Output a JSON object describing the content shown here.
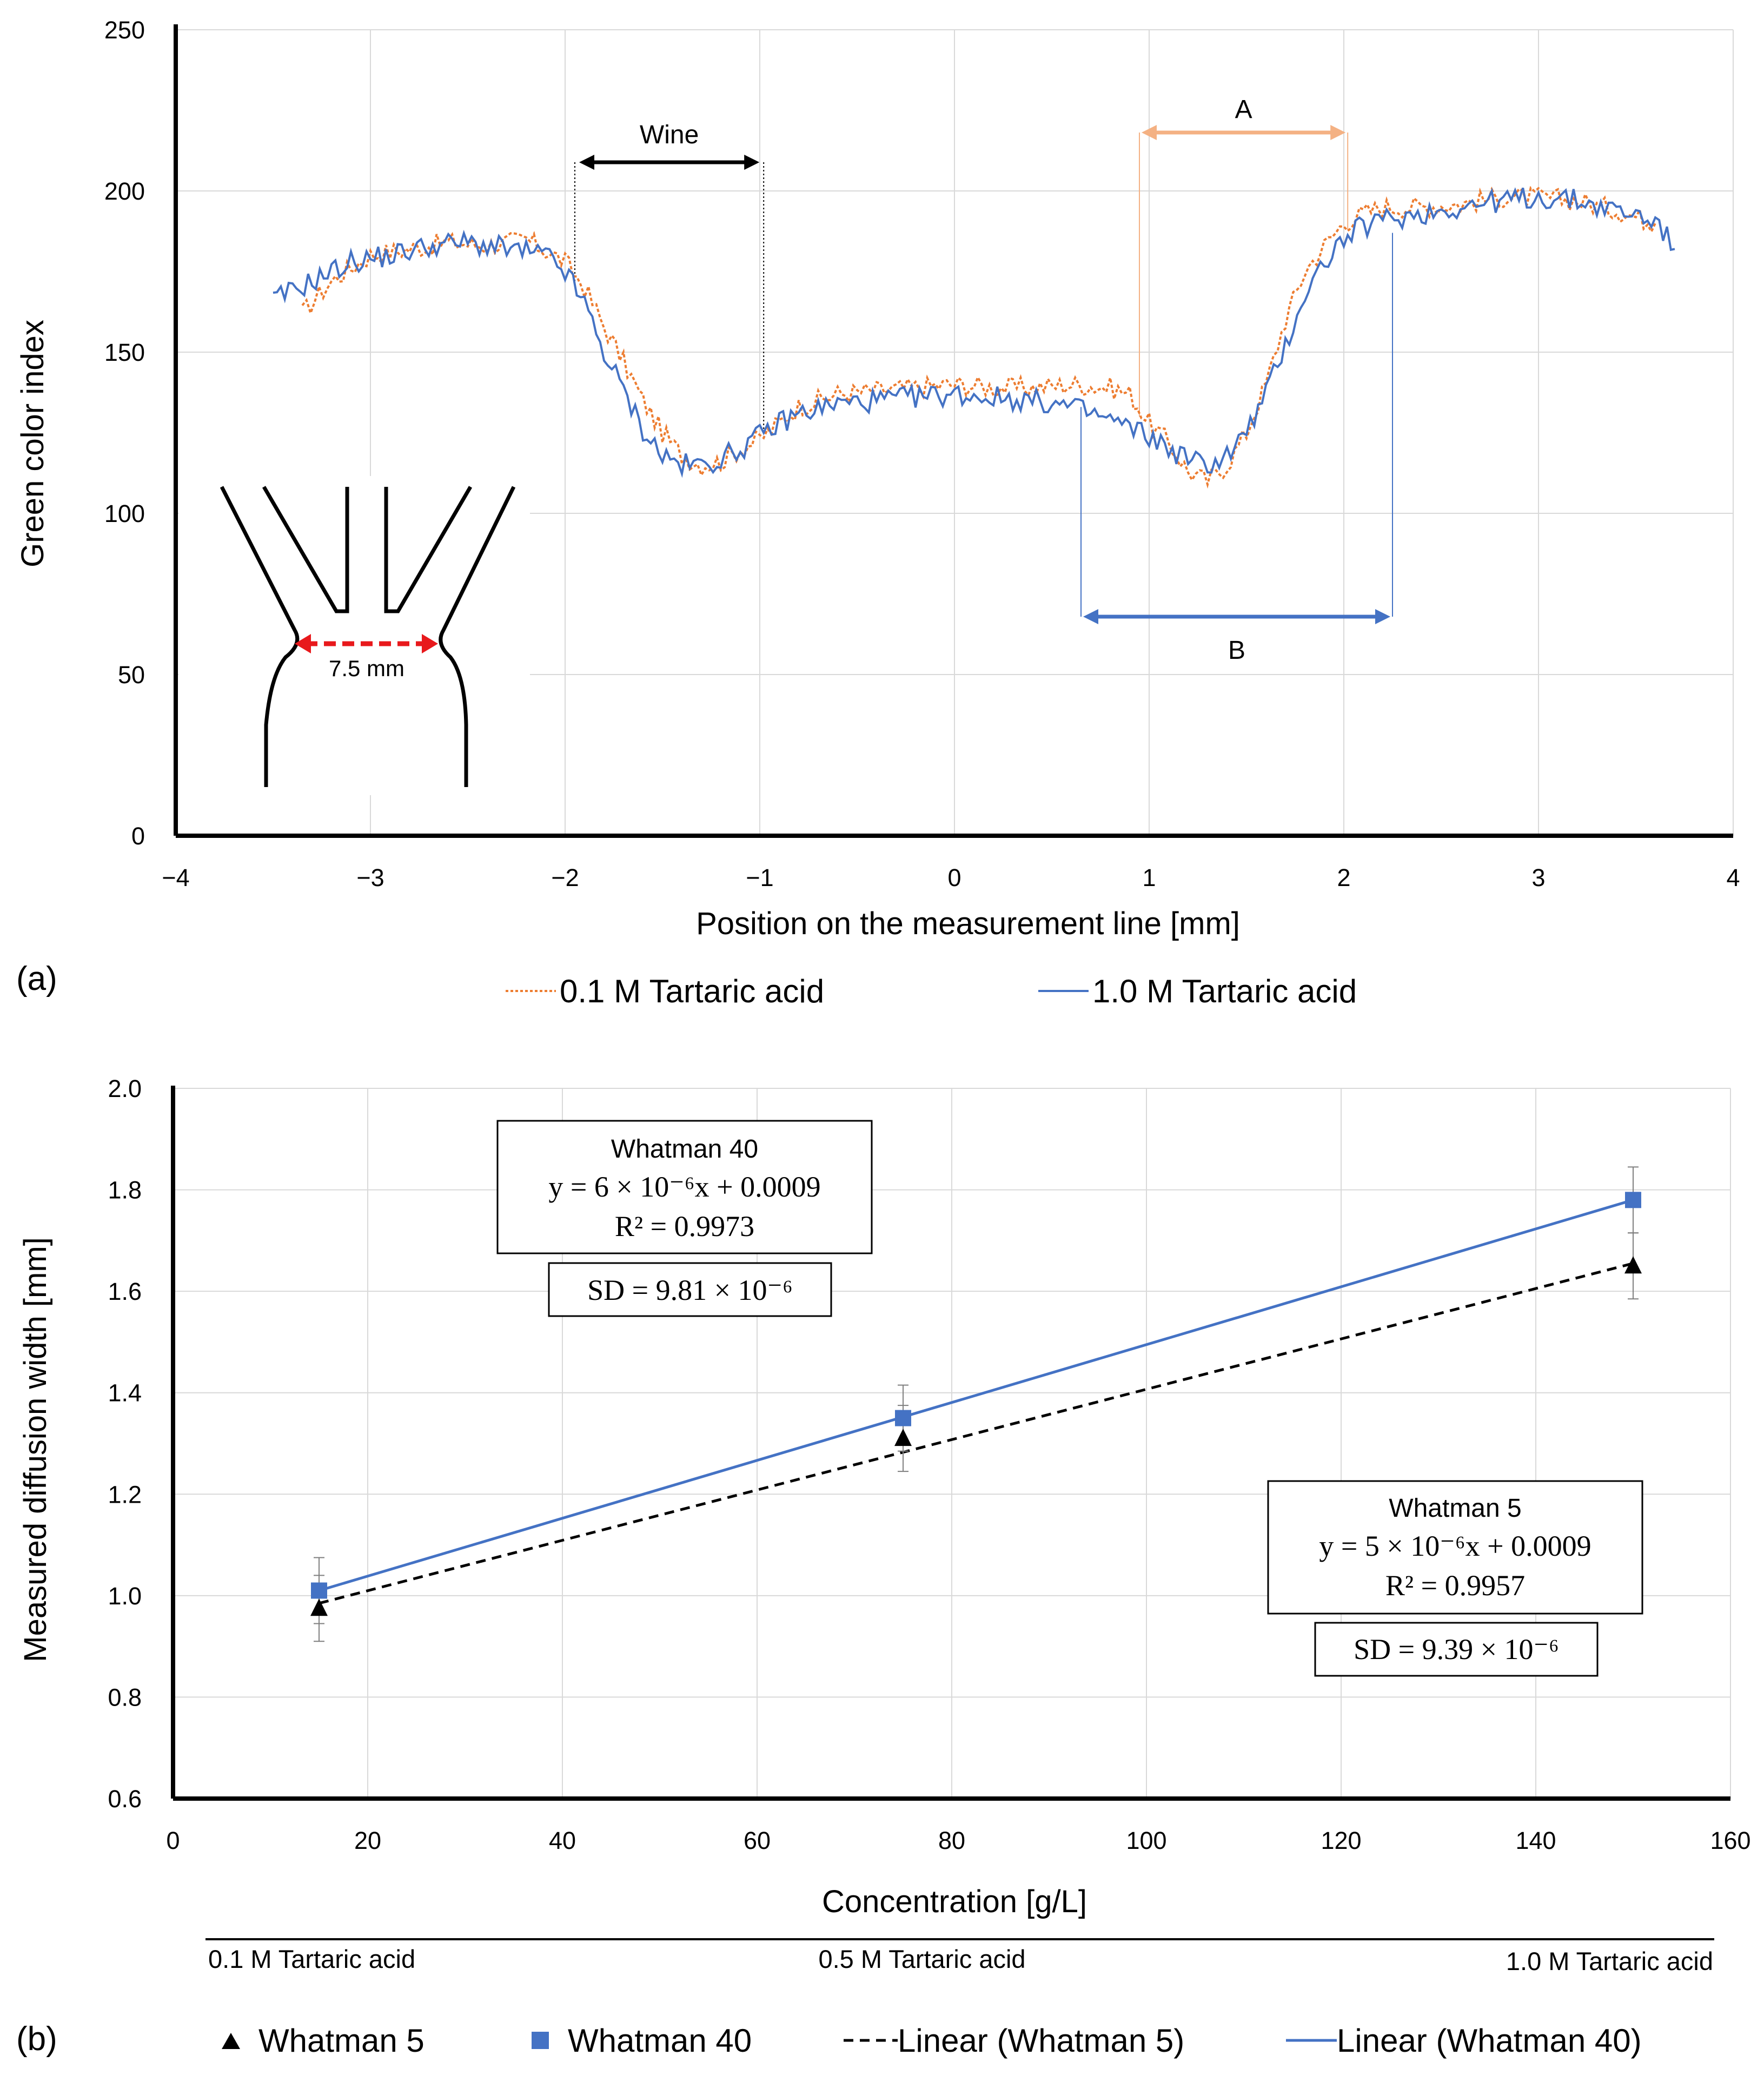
{
  "chart_data": [
    {
      "panel": "(a)",
      "type": "line",
      "xlabel": "Position on the measurement line [mm]",
      "ylabel": "Green color index",
      "xlim": [
        -4,
        4
      ],
      "ylim": [
        0,
        250
      ],
      "xticks": [
        "−4",
        "−3",
        "−2",
        "−1",
        "0",
        "1",
        "2",
        "3",
        "4"
      ],
      "yticks": [
        "0",
        "50",
        "100",
        "150",
        "200",
        "250"
      ],
      "grid": true,
      "legend": "bottom",
      "series": [
        {
          "name": "0.1 M Tartaric acid",
          "color": "#ED7D31",
          "style": "dotted",
          "x": [
            -3.35,
            -3.2,
            -3.0,
            -2.8,
            -2.6,
            -2.4,
            -2.2,
            -2.0,
            -1.9,
            -1.8,
            -1.7,
            -1.6,
            -1.5,
            -1.4,
            -1.3,
            -1.2,
            -1.1,
            -1.0,
            -0.9,
            -0.8,
            -0.6,
            -0.4,
            -0.2,
            0.0,
            0.2,
            0.4,
            0.6,
            0.8,
            0.9,
            1.0,
            1.1,
            1.2,
            1.3,
            1.4,
            1.5,
            1.6,
            1.7,
            1.8,
            1.9,
            2.0,
            2.1,
            2.2,
            2.4,
            2.6,
            2.8,
            3.0,
            3.2,
            3.4,
            3.6
          ],
          "y": [
            162,
            172,
            180,
            182,
            184,
            183,
            185,
            178,
            170,
            158,
            147,
            135,
            125,
            118,
            115,
            116,
            120,
            123,
            128,
            133,
            137,
            138,
            139,
            140,
            139,
            139,
            140,
            139,
            137,
            128,
            122,
            113,
            110,
            115,
            125,
            140,
            160,
            175,
            183,
            190,
            193,
            195,
            195,
            196,
            198,
            198,
            197,
            194,
            190
          ]
        },
        {
          "name": "1.0 M Tartaric acid",
          "color": "#4472C4",
          "style": "solid",
          "x": [
            -3.5,
            -3.3,
            -3.1,
            -2.9,
            -2.7,
            -2.5,
            -2.3,
            -2.1,
            -2.0,
            -1.9,
            -1.8,
            -1.7,
            -1.6,
            -1.5,
            -1.4,
            -1.3,
            -1.2,
            -1.1,
            -1.0,
            -0.9,
            -0.8,
            -0.6,
            -0.4,
            -0.2,
            0.0,
            0.2,
            0.4,
            0.6,
            0.8,
            1.0,
            1.1,
            1.2,
            1.3,
            1.4,
            1.5,
            1.6,
            1.7,
            1.8,
            1.9,
            2.0,
            2.1,
            2.2,
            2.4,
            2.6,
            2.8,
            3.0,
            3.2,
            3.4,
            3.6,
            3.7
          ],
          "y": [
            166,
            172,
            178,
            180,
            183,
            184,
            182,
            180,
            175,
            165,
            150,
            138,
            126,
            118,
            115,
            115,
            117,
            120,
            124,
            128,
            131,
            134,
            135,
            136,
            137,
            136,
            135,
            133,
            129,
            124,
            120,
            117,
            115,
            118,
            125,
            137,
            152,
            168,
            178,
            185,
            189,
            191,
            193,
            195,
            197,
            198,
            197,
            194,
            191,
            182
          ]
        }
      ],
      "annotations": {
        "wine_label": "Wine",
        "wine_range": [
          -1.95,
          -0.98
        ],
        "a_label": "A",
        "a_range": [
          0.95,
          2.02
        ],
        "b_label": "B",
        "b_range": [
          0.65,
          2.25
        ],
        "inset_width_label": "7.5 mm"
      }
    },
    {
      "panel": "(b)",
      "type": "scatter",
      "xlabel": "Concentration  [g/L]",
      "ylabel": "Measured diffusion width [mm]",
      "xlim": [
        0,
        160
      ],
      "ylim": [
        0.6,
        2.0
      ],
      "xticks": [
        "0",
        "20",
        "40",
        "60",
        "80",
        "100",
        "120",
        "140",
        "160"
      ],
      "yticks": [
        "0.6",
        "0.8",
        "1.0",
        "1.2",
        "1.4",
        "1.6",
        "1.8",
        "2.0"
      ],
      "grid": true,
      "legend": "bottom",
      "secondary_axis_labels": [
        {
          "text": "0.1 M Tartaric acid",
          "at": 15
        },
        {
          "text": "0.5 M Tartaric acid",
          "at": 75
        },
        {
          "text": "1.0 M Tartaric acid",
          "at": 150
        }
      ],
      "series": [
        {
          "name": "Whatman 5",
          "marker": "triangle",
          "color": "#000000",
          "x": [
            15,
            75,
            150
          ],
          "y": [
            0.975,
            1.31,
            1.65
          ],
          "error": [
            0.065,
            0.065,
            0.065
          ]
        },
        {
          "name": "Whatman 40",
          "marker": "square",
          "color": "#4472C4",
          "x": [
            15,
            75,
            150
          ],
          "y": [
            1.01,
            1.35,
            1.78
          ],
          "error": [
            0.065,
            0.065,
            0.065
          ]
        },
        {
          "name": "Linear (Whatman 5)",
          "type": "trendline",
          "style": "dashed",
          "color": "#000000",
          "x": [
            15,
            150
          ],
          "y": [
            0.985,
            1.655
          ]
        },
        {
          "name": "Linear (Whatman 40)",
          "type": "trendline",
          "style": "solid",
          "color": "#4472C4",
          "x": [
            15,
            150
          ],
          "y": [
            1.01,
            1.78
          ]
        }
      ],
      "boxes": {
        "w40_title": "Whatman 40",
        "w40_eq": "y = 6 × 10⁻⁶x + 0.0009",
        "w40_r2": "R² = 0.9973",
        "w40_sd": "SD = 9.81 × 10⁻⁶",
        "w5_title": "Whatman 5",
        "w5_eq": "y = 5 × 10⁻⁶x + 0.0009",
        "w5_r2": "R² = 0.9957",
        "w5_sd": "SD = 9.39 × 10⁻⁶"
      }
    }
  ]
}
